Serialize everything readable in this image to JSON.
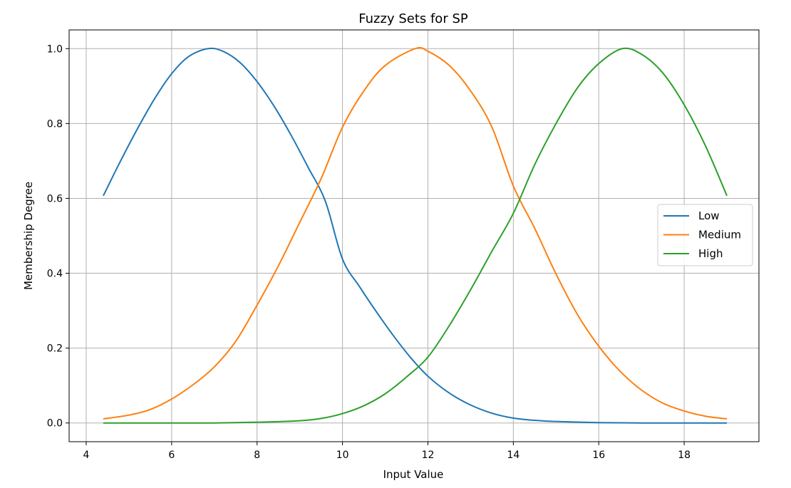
{
  "chart_data": {
    "type": "line",
    "title": "Fuzzy Sets for SP",
    "xlabel": "Input Value",
    "ylabel": "Membership Degree",
    "xlim": [
      3.6,
      19.75
    ],
    "ylim": [
      -0.05,
      1.05
    ],
    "xticks": [
      4,
      6,
      8,
      10,
      12,
      14,
      16,
      18
    ],
    "yticks": [
      0.0,
      0.2,
      0.4,
      0.6,
      0.8,
      1.0
    ],
    "grid": true,
    "legend_position": "center-right",
    "series": [
      {
        "name": "Low",
        "color": "#1f77b4",
        "x": [
          4.4,
          4.8,
          5.2,
          5.6,
          6.0,
          6.4,
          6.85,
          7.2,
          7.6,
          8.0,
          8.4,
          8.8,
          9.2,
          9.6,
          10.0,
          10.4,
          10.8,
          11.2,
          11.6,
          12.0,
          12.5,
          13.0,
          13.5,
          14.0,
          14.5,
          15.0,
          16.0,
          17.0,
          18.0,
          19.0
        ],
        "y": [
          0.607,
          0.699,
          0.786,
          0.866,
          0.933,
          0.979,
          1.0,
          0.993,
          0.963,
          0.912,
          0.846,
          0.768,
          0.682,
          0.592,
          0.438,
          0.364,
          0.296,
          0.232,
          0.174,
          0.125,
          0.08,
          0.048,
          0.026,
          0.013,
          0.007,
          0.004,
          0.001,
          0.0,
          0.0,
          0.0
        ]
      },
      {
        "name": "Medium",
        "color": "#ff7f0e",
        "x": [
          4.4,
          5.0,
          5.5,
          6.0,
          6.5,
          7.0,
          7.5,
          8.0,
          8.5,
          9.0,
          9.5,
          10.0,
          10.5,
          11.0,
          11.7,
          12.0,
          12.5,
          13.0,
          13.5,
          14.0,
          14.5,
          15.0,
          15.5,
          16.0,
          16.5,
          17.0,
          17.5,
          18.0,
          18.5,
          19.0
        ],
        "y": [
          0.011,
          0.021,
          0.036,
          0.064,
          0.102,
          0.15,
          0.218,
          0.315,
          0.42,
          0.536,
          0.653,
          0.79,
          0.887,
          0.955,
          1.0,
          0.993,
          0.955,
          0.887,
          0.79,
          0.633,
          0.52,
          0.398,
          0.29,
          0.205,
          0.138,
          0.088,
          0.053,
          0.032,
          0.018,
          0.011
        ]
      },
      {
        "name": "High",
        "color": "#2ca02c",
        "x": [
          4.4,
          6.0,
          7.0,
          8.0,
          9.0,
          9.5,
          10.0,
          10.5,
          11.0,
          11.5,
          12.0,
          12.5,
          13.0,
          13.5,
          14.0,
          14.5,
          15.0,
          15.5,
          16.0,
          16.55,
          17.0,
          17.5,
          18.0,
          18.5,
          19.0
        ],
        "y": [
          0.0,
          0.0,
          0.0,
          0.002,
          0.006,
          0.012,
          0.025,
          0.046,
          0.078,
          0.123,
          0.176,
          0.26,
          0.356,
          0.459,
          0.56,
          0.69,
          0.8,
          0.895,
          0.96,
          1.0,
          0.985,
          0.935,
          0.85,
          0.74,
          0.607
        ]
      }
    ]
  }
}
